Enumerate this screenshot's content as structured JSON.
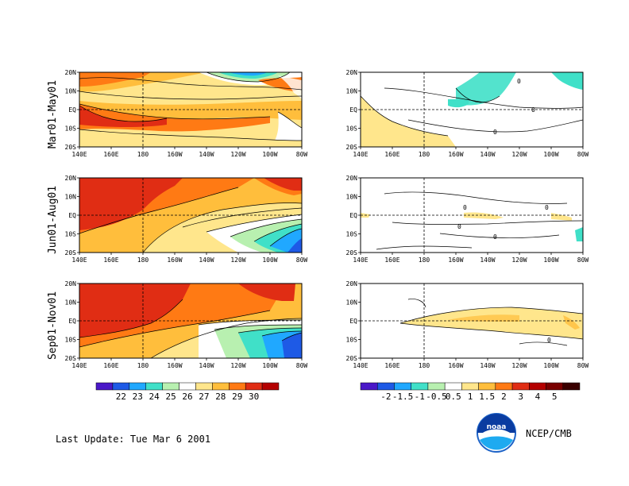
{
  "periods": [
    {
      "label": "Mar01-May01"
    },
    {
      "label": "Jun01-Aug01"
    },
    {
      "label": "Sep01-Nov01"
    }
  ],
  "x_ticks": [
    "140E",
    "160E",
    "180",
    "160W",
    "140W",
    "120W",
    "100W",
    "80W"
  ],
  "y_ticks": [
    "20N",
    "10N",
    "EQ",
    "10S",
    "20S"
  ],
  "sst_colorbar": {
    "labels": [
      "22",
      "23",
      "24",
      "25",
      "26",
      "27",
      "28",
      "29",
      "30"
    ],
    "colors": [
      "#4a18c8",
      "#1e5ae6",
      "#20a8ff",
      "#40e0c8",
      "#b8f0b0",
      "#ffffff",
      "#ffe68c",
      "#ffbe3c",
      "#ff7a14",
      "#e02d14",
      "#b40000"
    ]
  },
  "anom_colorbar": {
    "labels": [
      "-2",
      "-1.5",
      "-1",
      "-0.5",
      "0.5",
      "1",
      "1.5",
      "2",
      "3",
      "4",
      "5"
    ],
    "colors": [
      "#4a18c8",
      "#1e5ae6",
      "#20a8ff",
      "#40e0c8",
      "#b8f0b0",
      "#ffffff",
      "#ffe68c",
      "#ffbe3c",
      "#ff7a14",
      "#e02d14",
      "#b40000",
      "#7a0000",
      "#3a0000"
    ]
  },
  "contour_labels": {
    "anomaly_zero": "0"
  },
  "footer": {
    "last_update": "Last Update:  Tue Mar 6 2001",
    "credit": "NCEP/CMB",
    "logo_text": "noaa"
  }
}
